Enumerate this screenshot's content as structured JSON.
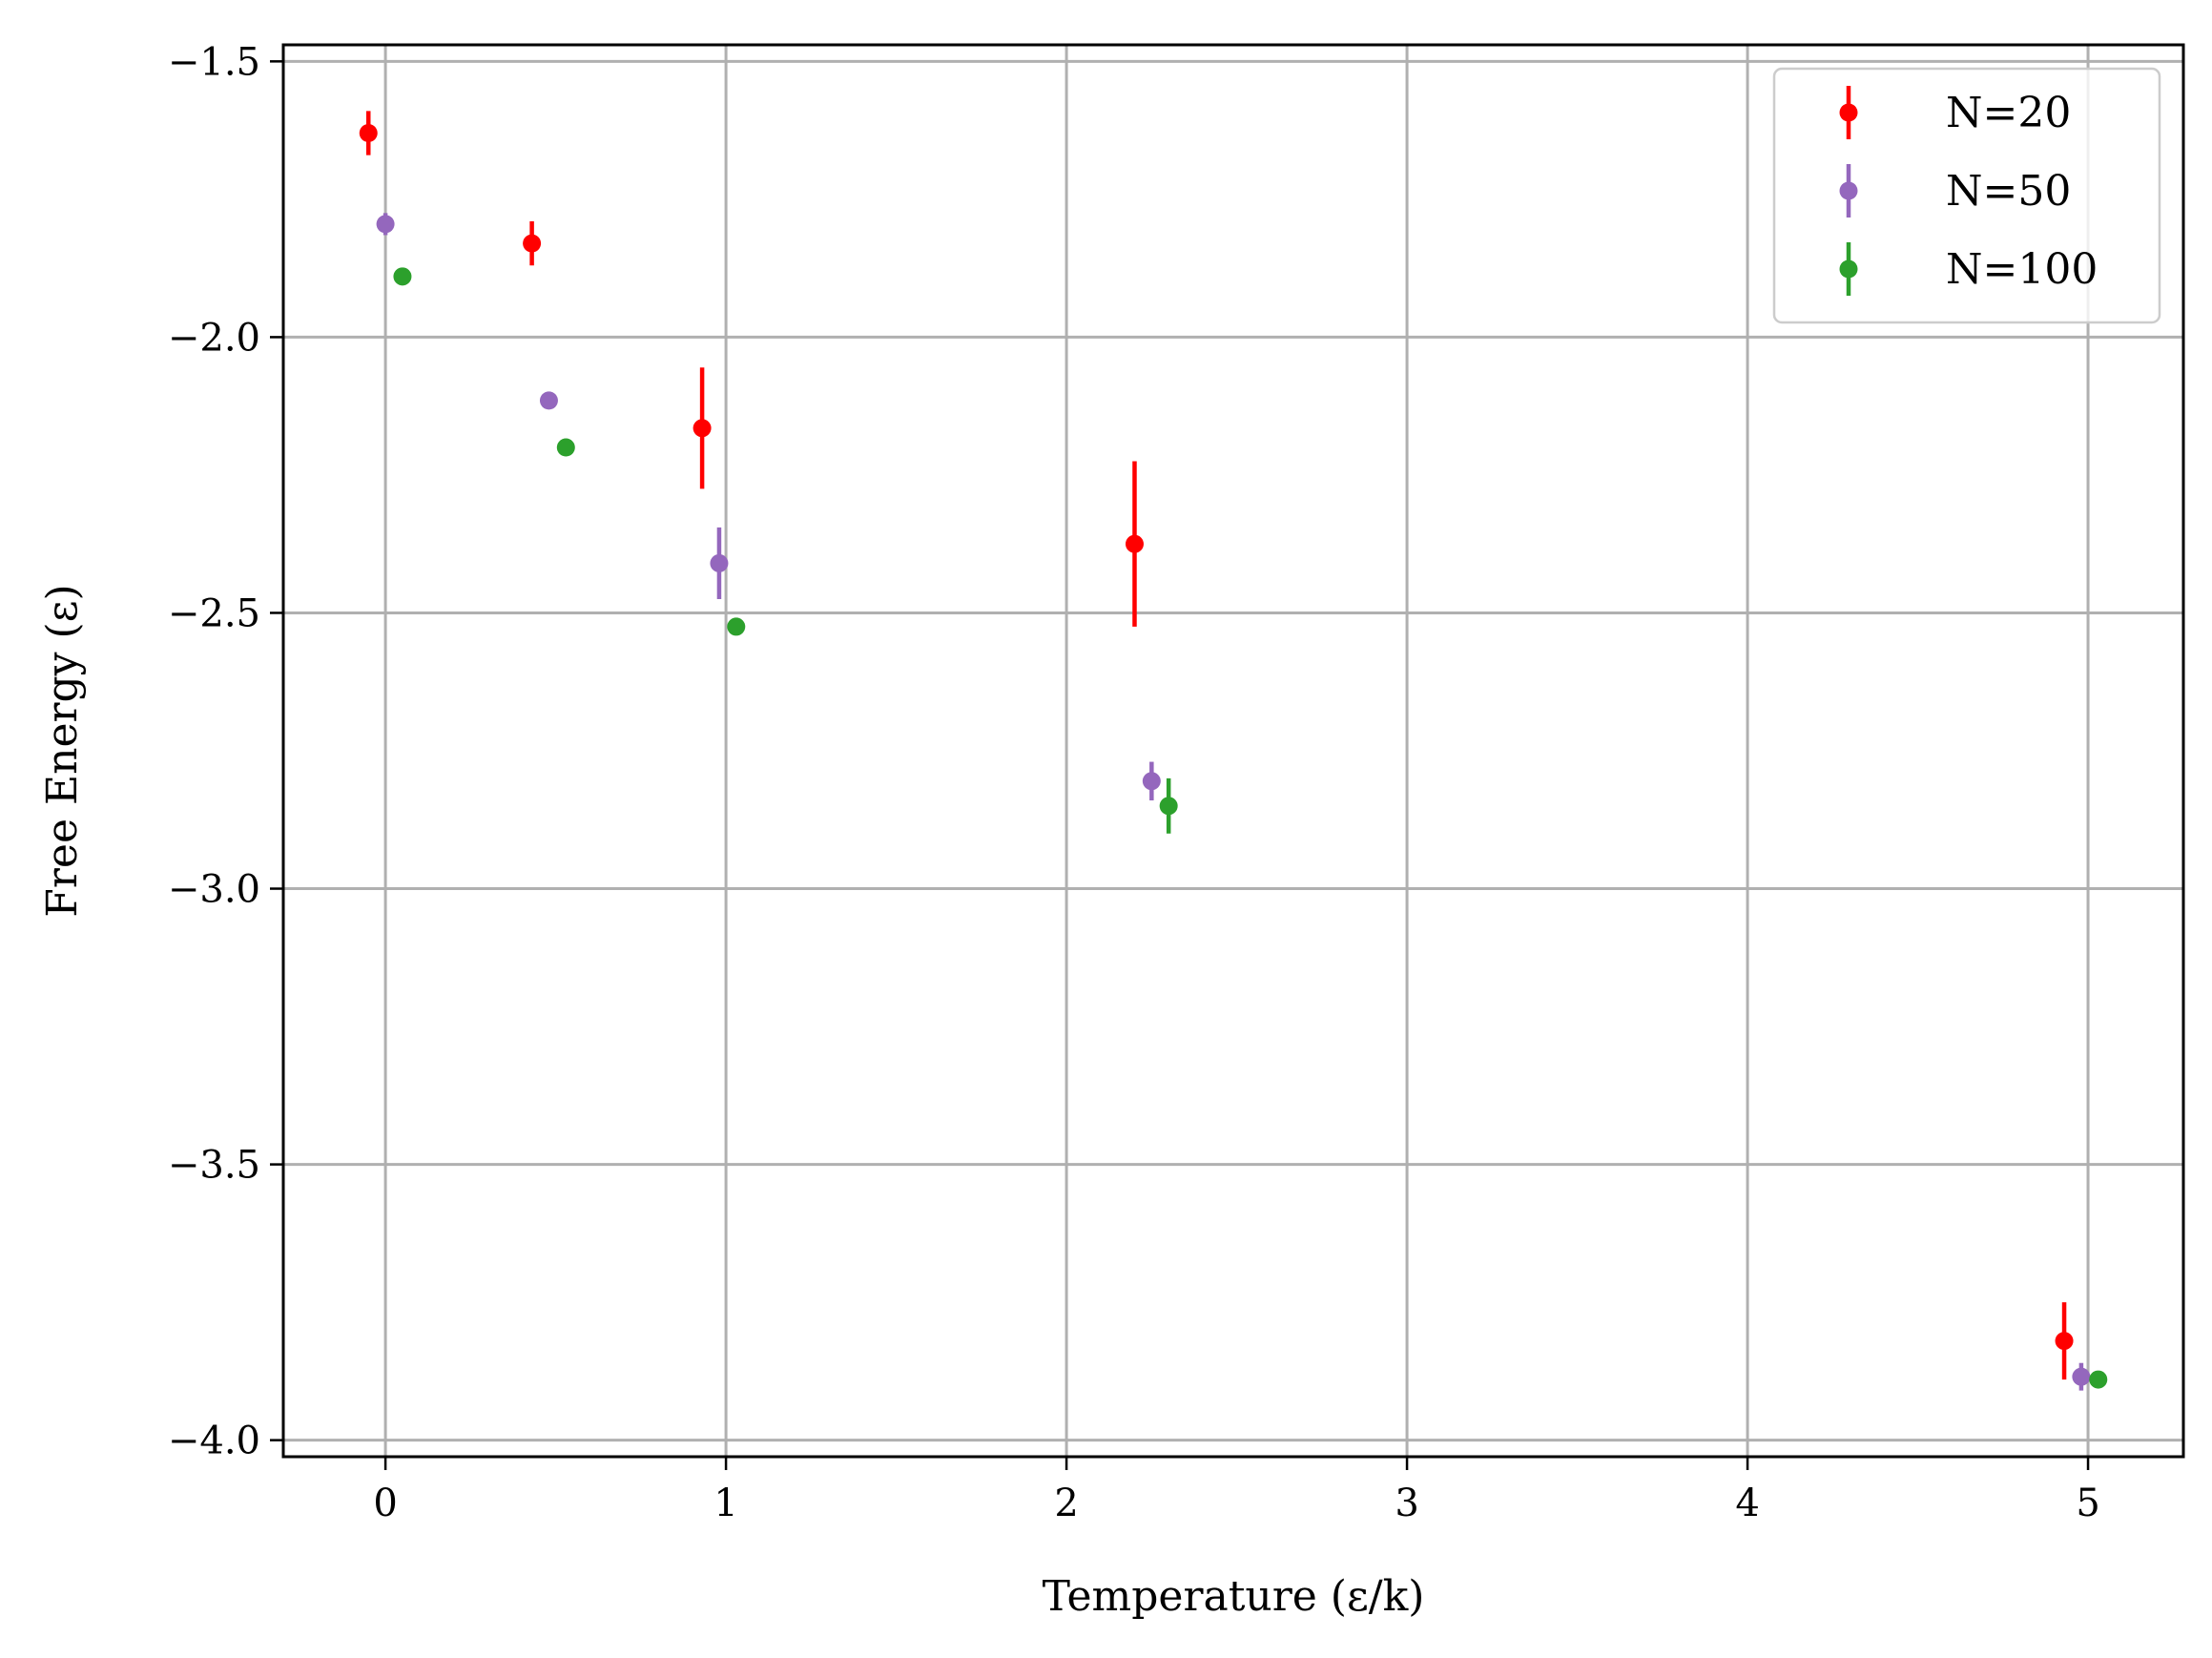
{
  "chart_data": {
    "type": "scatter",
    "xlabel": "Temperature (ε/k)",
    "ylabel": "Free Energy (ε)",
    "xlim": [
      -0.3,
      5.28
    ],
    "ylim": [
      -4.03,
      -1.47
    ],
    "xticks": [
      0,
      1,
      2,
      3,
      4,
      5
    ],
    "xtick_labels": [
      "0",
      "1",
      "2",
      "3",
      "4",
      "5"
    ],
    "yticks": [
      -1.5,
      -2.0,
      -2.5,
      -3.0,
      -3.5,
      -4.0
    ],
    "ytick_labels": [
      "−1.5",
      "−2.0",
      "−2.5",
      "−3.0",
      "−3.5",
      "−4.0"
    ],
    "grid": true,
    "legend_position": "top-right",
    "series": [
      {
        "name": "N=20",
        "color": "#ff0000",
        "x": [
          -0.05,
          0.43,
          0.93,
          2.2,
          4.93
        ],
        "y": [
          -1.63,
          -1.83,
          -2.165,
          -2.375,
          -3.82
        ],
        "yerr": [
          0.04,
          0.04,
          0.11,
          0.15,
          0.07
        ]
      },
      {
        "name": "N=50",
        "color": "#9467bd",
        "x": [
          0.0,
          0.48,
          0.98,
          2.25,
          4.98
        ],
        "y": [
          -1.795,
          -2.115,
          -2.41,
          -2.805,
          -3.885
        ],
        "yerr": [
          0.02,
          0.005,
          0.065,
          0.035,
          0.025
        ]
      },
      {
        "name": "N=100",
        "color": "#2ca02c",
        "x": [
          0.05,
          0.53,
          1.03,
          2.3,
          5.03
        ],
        "y": [
          -1.89,
          -2.2,
          -2.525,
          -2.85,
          -3.89
        ],
        "yerr": [
          0.005,
          0.005,
          0.015,
          0.05,
          0.005
        ]
      }
    ]
  }
}
